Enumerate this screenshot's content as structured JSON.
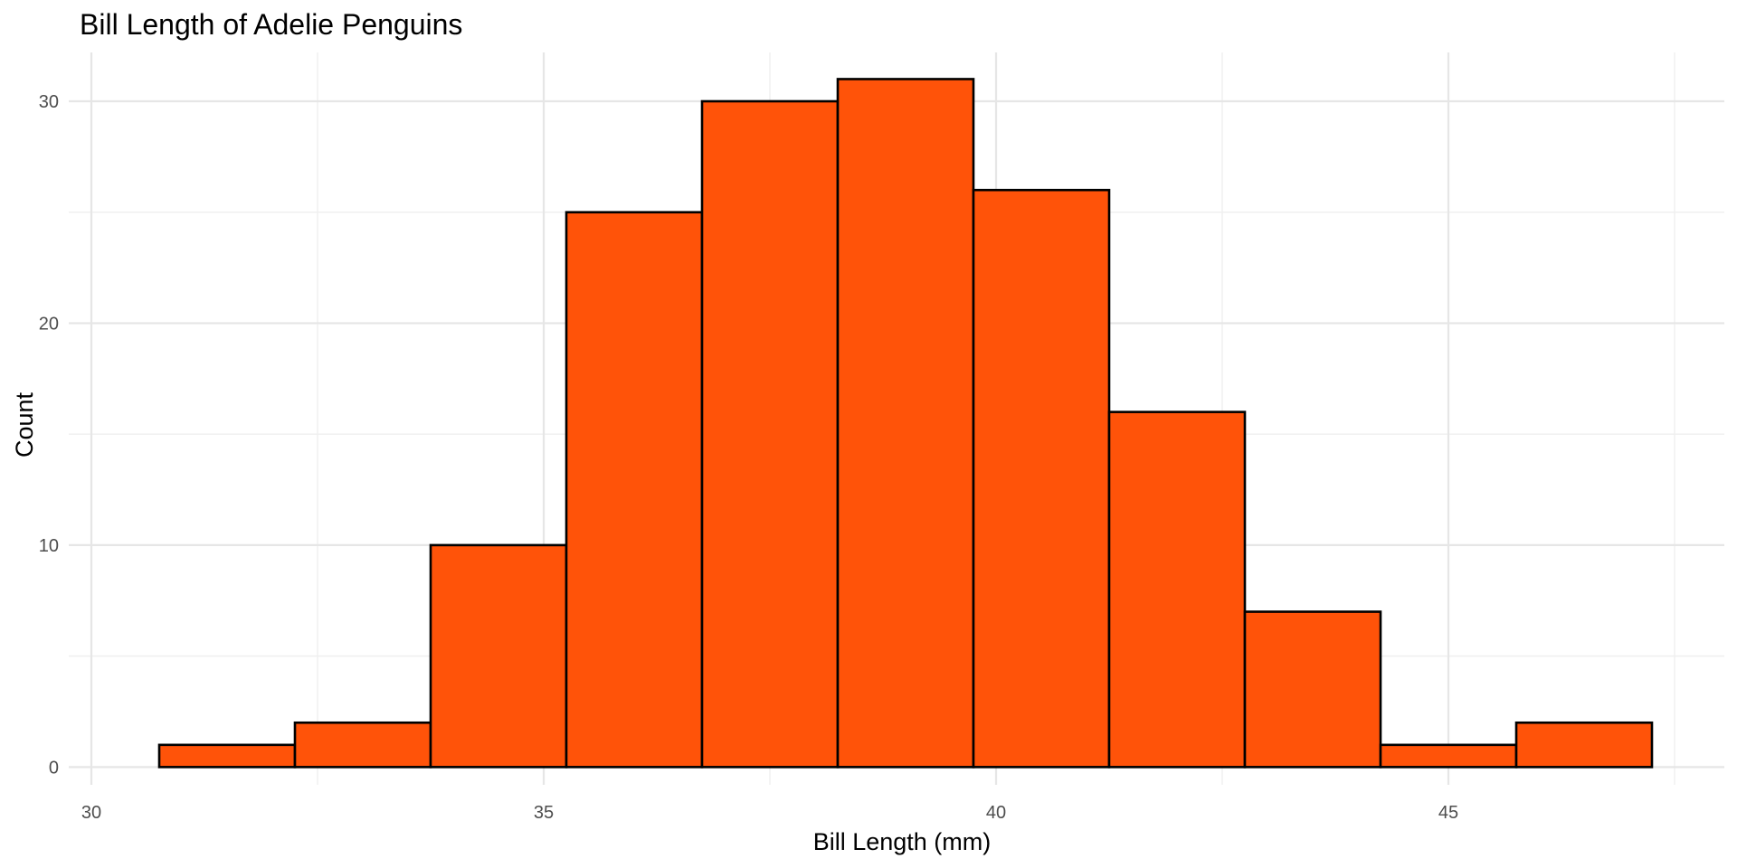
{
  "chart_data": {
    "type": "bar",
    "title": "Bill Length of Adelie Penguins",
    "xlabel": "Bill Length (mm)",
    "ylabel": "Count",
    "xlim": [
      29.75,
      48.05
    ],
    "ylim": [
      -0.8,
      32.2
    ],
    "x_ticks": [
      30,
      35,
      40,
      45
    ],
    "y_ticks": [
      0,
      10,
      20,
      30
    ],
    "grid": true,
    "bar_color": "#FF5309",
    "bins": [
      {
        "x0": 30.75,
        "x1": 32.25,
        "count": 1
      },
      {
        "x0": 32.25,
        "x1": 33.75,
        "count": 2
      },
      {
        "x0": 33.75,
        "x1": 35.25,
        "count": 10
      },
      {
        "x0": 35.25,
        "x1": 36.75,
        "count": 25
      },
      {
        "x0": 36.75,
        "x1": 38.25,
        "count": 30
      },
      {
        "x0": 38.25,
        "x1": 39.75,
        "count": 31
      },
      {
        "x0": 39.75,
        "x1": 41.25,
        "count": 26
      },
      {
        "x0": 41.25,
        "x1": 42.75,
        "count": 16
      },
      {
        "x0": 42.75,
        "x1": 44.25,
        "count": 7
      },
      {
        "x0": 44.25,
        "x1": 45.75,
        "count": 1
      },
      {
        "x0": 45.75,
        "x1": 47.25,
        "count": 2
      }
    ]
  }
}
